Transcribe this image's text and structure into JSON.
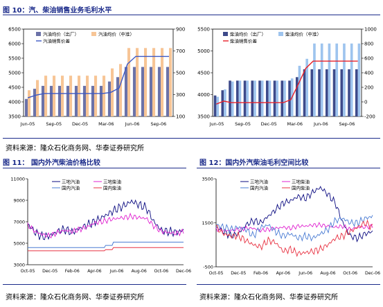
{
  "fig10": {
    "title": "图 10：汽、柴油销售业务毛利水平",
    "source": "资料来源：隆众石化商务网、华泰证券研究所"
  },
  "fig11": {
    "title": "图 11：  国内外汽柴油价格比较",
    "source": "资料来源：隆众石化商务网、华泰证券研究所"
  },
  "fig12": {
    "title": "图 12：国内外汽柴油毛利空间比较",
    "source": "资料来源：隆众石化商务网、华泰证券研究所"
  },
  "colors": {
    "navy": "#1a2a8a",
    "gas_ex_factory": "#6b72a8",
    "gas_midstream": "#f7c596",
    "gas_margin": "#3b57c4",
    "diesel_ex_factory": "#3d4a8a",
    "diesel_midstream": "#9ec4ee",
    "diesel_margin": "#e8202a",
    "sandi_gas": "#0a0a80",
    "sandi_diesel": "#e020d0",
    "domestic_gas": "#4a7cd4",
    "domestic_diesel": "#e83040"
  },
  "chart_data": [
    {
      "id": "gasoline",
      "type": "bar",
      "x_tick_labels": [
        "Jun-05",
        "Sep-05",
        "Dec-05",
        "Mar-06",
        "Jun-06",
        "Sep-06"
      ],
      "ylim": [
        3500,
        6500
      ],
      "y_ticks": [
        3500,
        4000,
        4500,
        5000,
        5500,
        6000,
        6500
      ],
      "y2lim": [
        100,
        900
      ],
      "y2_ticks": [
        100,
        300,
        500,
        700,
        900
      ],
      "grid": false,
      "legend": "top-left",
      "series": [
        {
          "name": "汽油均价（出厂）",
          "kind": "bar",
          "values": [
            4100,
            4450,
            4550,
            4550,
            4550,
            4550,
            4550,
            4550,
            4550,
            4550,
            4700,
            4850,
            5200,
            5200,
            5200,
            5200,
            5200,
            5200
          ]
        },
        {
          "name": "汽油均价（中准）",
          "kind": "bar",
          "values": [
            4400,
            4750,
            4900,
            4900,
            4900,
            4900,
            4900,
            4900,
            4900,
            4900,
            5150,
            5300,
            5850,
            5850,
            5850,
            5850,
            5850,
            5850
          ]
        },
        {
          "name": "汽油销售价差",
          "kind": "line",
          "axis": "y2",
          "values": [
            270,
            295,
            310,
            310,
            310,
            310,
            310,
            310,
            310,
            310,
            320,
            360,
            580,
            650,
            650,
            650,
            650,
            650
          ]
        }
      ]
    },
    {
      "id": "diesel",
      "type": "bar",
      "x_tick_labels": [
        "Jun-05",
        "Sep-05",
        "Dec-05",
        "Mar-06",
        "Jun-06",
        "Sep-06"
      ],
      "ylim": [
        3500,
        5500
      ],
      "y_ticks": [
        3500,
        4000,
        4500,
        5000,
        5500
      ],
      "y2lim": [
        -200,
        1000
      ],
      "y2_ticks": [
        -200,
        0,
        200,
        400,
        600,
        800,
        1000
      ],
      "grid": false,
      "legend": "top-left",
      "series": [
        {
          "name": "柴油均价（出厂）",
          "kind": "bar",
          "values": [
            3980,
            4100,
            4320,
            4320,
            4320,
            4320,
            4320,
            4320,
            4320,
            4320,
            4320,
            4400,
            4580,
            4580,
            4580,
            4580,
            4580,
            4580,
            4580,
            4580
          ]
        },
        {
          "name": "柴油均价（中准）",
          "kind": "bar",
          "values": [
            3950,
            4120,
            4300,
            4320,
            4320,
            4320,
            4320,
            4320,
            4320,
            4320,
            4370,
            4660,
            4820,
            5170,
            5170,
            5170,
            5170,
            5170,
            5170,
            5170
          ]
        },
        {
          "name": "柴油销售价差",
          "kind": "line",
          "axis": "y2",
          "values": [
            -30,
            10,
            -10,
            -10,
            -10,
            -10,
            -10,
            -10,
            -10,
            -10,
            30,
            240,
            460,
            560,
            560,
            560,
            560,
            560,
            560,
            560
          ]
        }
      ]
    },
    {
      "id": "price_compare",
      "type": "line",
      "x_tick_labels": [
        "Oct-05",
        "Dec-05",
        "Feb-06",
        "Apr-06",
        "Jun-06",
        "Aug-06",
        "Oct-06",
        "Dec-06"
      ],
      "ylim": [
        3000,
        11000
      ],
      "y_ticks": [
        3000,
        5000,
        7000,
        9000,
        11000
      ],
      "grid": false,
      "legend": "top-center",
      "series": [
        {
          "name": "三地汽油",
          "values": [
            6800,
            6000,
            5600,
            5700,
            6100,
            6300,
            6000,
            6400,
            6700,
            7000,
            7400,
            7800,
            8200,
            8500,
            8900,
            8600,
            8300,
            7000,
            6200,
            6100,
            6000,
            6200
          ]
        },
        {
          "name": "三地柴油",
          "values": [
            6700,
            6100,
            5800,
            5700,
            6000,
            6200,
            6100,
            6300,
            6500,
            6900,
            7000,
            7200,
            7300,
            7400,
            7500,
            7400,
            7300,
            6600,
            6100,
            6000,
            5900,
            6100
          ]
        },
        {
          "name": "国内汽油",
          "values": [
            4600,
            4600,
            4600,
            4600,
            4600,
            4600,
            4600,
            4600,
            4600,
            4600,
            4600,
            4800,
            5100,
            5100,
            5100,
            5100,
            5100,
            5100,
            5100,
            5100,
            5100,
            5100
          ]
        },
        {
          "name": "国内柴油",
          "values": [
            4300,
            4300,
            4300,
            4300,
            4300,
            4300,
            4300,
            4300,
            4300,
            4300,
            4300,
            4400,
            4600,
            4600,
            4600,
            4600,
            4600,
            4600,
            4600,
            4600,
            4600,
            4600
          ]
        }
      ]
    },
    {
      "id": "margin_compare",
      "type": "line",
      "x_tick_labels": [
        "Oct-05",
        "Dec-05",
        "Feb-06",
        "Apr-06",
        "Jun-06",
        "Aug-06",
        "Oct-06",
        "Dec-06"
      ],
      "ylim": [
        -500,
        3500
      ],
      "y_ticks": [
        -500,
        1500,
        3500
      ],
      "grid": false,
      "legend": "top-center",
      "series": [
        {
          "name": "三地汽油",
          "values": [
            1300,
            1100,
            900,
            1000,
            1400,
            1600,
            1500,
            1800,
            2100,
            2400,
            2500,
            2700,
            2600,
            2900,
            3100,
            2800,
            2400,
            1500,
            900,
            800,
            1000,
            1100
          ]
        },
        {
          "name": "三地柴油",
          "values": [
            1200,
            1150,
            1150,
            1200,
            1250,
            1250,
            1150,
            1200,
            1250,
            1300,
            1250,
            1350,
            1350,
            1400,
            1400,
            1350,
            1300,
            1350,
            1200,
            1300,
            1300,
            1350
          ]
        },
        {
          "name": "国内汽油",
          "values": [
            1400,
            1300,
            1200,
            1300,
            1200,
            900,
            1300,
            1400,
            1100,
            900,
            1000,
            800,
            900,
            800,
            1000,
            1200,
            1600,
            1700,
            1500,
            1500,
            1700,
            1800
          ]
        },
        {
          "name": "国内柴油",
          "values": [
            1300,
            1000,
            900,
            900,
            700,
            500,
            400,
            700,
            600,
            200,
            300,
            100,
            150,
            200,
            300,
            500,
            800,
            900,
            1100,
            1300,
            1500,
            1300
          ]
        }
      ]
    }
  ]
}
